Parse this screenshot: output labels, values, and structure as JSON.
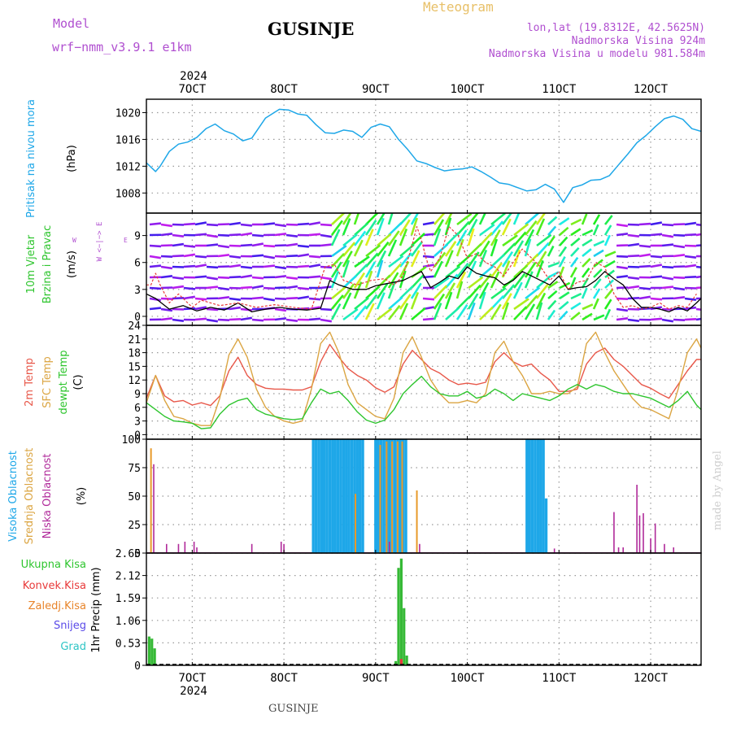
{
  "header": {
    "model_label": "Model",
    "model_name": "wrf−nmm_v3.9.1  e1km",
    "station": "GUSINJE",
    "meteogram": "Meteogram",
    "lonlat": "lon,lat (19.8312E, 42.5625N)",
    "altitude": "Nadmorska Visina 924m",
    "model_altitude": "Nadmorska Visina u modelu 981.584m",
    "watermark": "made by Angel",
    "footer_station": "GUSINJE"
  },
  "time_axis": {
    "year": "2024",
    "day_labels": [
      "7OCT",
      "8OCT",
      "9OCT",
      "10OCT",
      "11OCT",
      "12OCT"
    ],
    "day_positions": [
      7,
      8,
      9,
      10,
      11,
      12
    ],
    "range_days": [
      6.5,
      12.55
    ]
  },
  "colors": {
    "pressure": "#1ea7e8",
    "t2m": "#e8584a",
    "sfc": "#dba542",
    "dew": "#2ec52e",
    "high_cloud": "#1ea7e8",
    "mid_cloud": "#e89a2a",
    "low_cloud": "#b02a9a",
    "total_precip": "#35b935",
    "conv_precip": "#e83a3a",
    "frozen_precip": "#e8842a",
    "snow": "#5a4ae8",
    "graupel": "#2ec5c5",
    "wind_line": "#000000",
    "gust_line": "#e83a3a"
  },
  "panel_labels": {
    "pressure": [
      "Pritisak na nivou mora",
      "(hPa)"
    ],
    "wind": [
      "10m Vjetar",
      "Brzina i Pravac",
      "(m/s)"
    ],
    "compass": {
      "n": "N",
      "s": "S",
      "w": "W",
      "e": "E",
      "text": "W <−|−> E"
    },
    "temp": [
      "2m Temp",
      "SFC Temp",
      "dewpt Temp",
      "(C)"
    ],
    "cloud": [
      "Visoka Oblacnost",
      "Srednja Oblacnost",
      "Niska Oblacnost",
      "(%)"
    ],
    "precip_legend": [
      "Ukupna Kisa",
      "Konvek.Kisa",
      "Zaledj.Kisa",
      "Snijeg",
      "Grad"
    ],
    "precip_axis": "1hr Precip (mm)"
  },
  "chart_data": [
    {
      "type": "line",
      "panel": "pressure",
      "ylabel": "(hPa)",
      "yticks": [
        1008,
        1012,
        1016,
        1020
      ],
      "ylim": [
        1005,
        1022
      ],
      "x": [
        6.5,
        6.6,
        6.65,
        6.75,
        6.85,
        6.95,
        7.05,
        7.15,
        7.25,
        7.35,
        7.45,
        7.55,
        7.65,
        7.8,
        7.95,
        8.05,
        8.15,
        8.25,
        8.35,
        8.45,
        8.55,
        8.65,
        8.75,
        8.85,
        8.95,
        9.05,
        9.15,
        9.25,
        9.35,
        9.45,
        9.55,
        9.65,
        9.75,
        9.85,
        9.95,
        10.05,
        10.15,
        10.25,
        10.35,
        10.45,
        10.55,
        10.65,
        10.75,
        10.85,
        10.95,
        11.05,
        11.15,
        11.25,
        11.35,
        11.45,
        11.55,
        11.65,
        11.75,
        11.85,
        11.95,
        12.05,
        12.15,
        12.25,
        12.35,
        12.45,
        12.55
      ],
      "values": [
        1012.5,
        1011.2,
        1012.0,
        1014.2,
        1015.3,
        1015.6,
        1016.3,
        1017.6,
        1018.3,
        1017.3,
        1016.8,
        1015.8,
        1016.2,
        1019.2,
        1020.5,
        1020.4,
        1019.8,
        1019.6,
        1018.2,
        1017.0,
        1016.9,
        1017.4,
        1017.2,
        1016.3,
        1017.8,
        1018.3,
        1017.9,
        1016.0,
        1014.5,
        1012.8,
        1012.4,
        1011.8,
        1011.3,
        1011.5,
        1011.6,
        1011.9,
        1011.2,
        1010.4,
        1009.5,
        1009.3,
        1008.8,
        1008.3,
        1008.5,
        1009.3,
        1008.6,
        1006.6,
        1008.8,
        1009.2,
        1009.9,
        1010.0,
        1010.6,
        1012.2,
        1013.8,
        1015.5,
        1016.6,
        1017.9,
        1019.1,
        1019.5,
        1019.0,
        1017.6,
        1017.2
      ]
    },
    {
      "type": "line",
      "panel": "wind",
      "ylabel": "(m/s)",
      "yticks": [
        0,
        3,
        6,
        9
      ],
      "ylim": [
        -1,
        11.5
      ],
      "series": [
        {
          "x": [
            6.5,
            6.6,
            6.75,
            6.9,
            7.05,
            7.2,
            7.35,
            7.5,
            7.65,
            7.8,
            7.95,
            8.1,
            8.25,
            8.4,
            8.5,
            8.6,
            8.75,
            8.9,
            9.0,
            9.1,
            9.2,
            9.3,
            9.4,
            9.5,
            9.6,
            9.7,
            9.8,
            9.9,
            10.0,
            10.1,
            10.2,
            10.3,
            10.4,
            10.5,
            10.6,
            10.7,
            10.8,
            10.9,
            11.0,
            11.1,
            11.2,
            11.3,
            11.4,
            11.5,
            11.6,
            11.7,
            11.8,
            11.9,
            12.0,
            12.1,
            12.2,
            12.3,
            12.4,
            12.5,
            12.55
          ],
          "values": [
            2.5,
            2.0,
            0.8,
            1.2,
            0.6,
            1.0,
            0.7,
            1.5,
            0.5,
            0.8,
            1.0,
            0.8,
            0.7,
            0.9,
            4.0,
            3.5,
            3.0,
            3.0,
            3.4,
            3.6,
            3.8,
            4.0,
            4.5,
            5.0,
            3.2,
            3.8,
            4.5,
            4.2,
            5.5,
            4.8,
            4.5,
            4.3,
            3.5,
            4.0,
            5.0,
            4.5,
            4.0,
            3.5,
            4.5,
            3.0,
            3.2,
            3.3,
            4.0,
            5.0,
            4.2,
            3.5,
            2.0,
            1.0,
            1.0,
            0.8,
            0.5,
            1.0,
            0.6,
            1.5,
            2.0
          ]
        },
        {
          "x": [
            6.5,
            6.55,
            6.6,
            6.65,
            6.75,
            6.85,
            7.0,
            7.1,
            7.3,
            7.5,
            7.7,
            7.9,
            8.1,
            8.3,
            8.45,
            8.55,
            8.65,
            8.8,
            8.95,
            9.1,
            9.2,
            9.3,
            9.4,
            9.45,
            9.5,
            9.55,
            9.6,
            9.7,
            9.8,
            9.9,
            10.0,
            10.1,
            10.2,
            10.3,
            10.4,
            10.5,
            10.6,
            10.7,
            10.8,
            10.9,
            11.0,
            11.1,
            11.2,
            11.3,
            11.4,
            11.5,
            11.6,
            11.7,
            11.8,
            11.9,
            12.0,
            12.1,
            12.2,
            12.3,
            12.4,
            12.5
          ],
          "values": [
            3.5,
            3.5,
            4.8,
            3.5,
            1.5,
            2.5,
            1.0,
            1.8,
            1.2,
            1.5,
            1.0,
            1.3,
            1.0,
            0.8,
            5.5,
            5.8,
            4.0,
            3.5,
            4.0,
            4.2,
            3.5,
            4.5,
            8.0,
            10.0,
            8.5,
            6.5,
            5.0,
            6.5,
            10.0,
            9.0,
            6.5,
            7.0,
            6.0,
            5.5,
            4.5,
            6.0,
            7.5,
            6.5,
            5.5,
            4.0,
            5.0,
            3.0,
            3.8,
            4.0,
            6.0,
            5.5,
            2.5,
            1.0,
            1.2,
            0.8,
            1.0,
            1.5,
            0.8,
            1.2,
            1.0,
            2.5
          ]
        }
      ]
    },
    {
      "type": "line",
      "panel": "temperature",
      "ylabel": "(C)",
      "yticks": [
        0,
        3,
        6,
        9,
        12,
        15,
        18,
        21,
        24
      ],
      "ylim": [
        -1,
        24
      ],
      "series": [
        {
          "name": "2m Temp",
          "x": [
            6.5,
            6.6,
            6.7,
            6.8,
            6.9,
            7.0,
            7.1,
            7.2,
            7.3,
            7.4,
            7.5,
            7.6,
            7.7,
            7.8,
            7.9,
            8.0,
            8.1,
            8.2,
            8.3,
            8.4,
            8.5,
            8.6,
            8.7,
            8.8,
            8.9,
            9.0,
            9.1,
            9.2,
            9.3,
            9.4,
            9.5,
            9.6,
            9.7,
            9.8,
            9.9,
            10.0,
            10.1,
            10.2,
            10.3,
            10.4,
            10.5,
            10.6,
            10.7,
            10.8,
            10.9,
            11.0,
            11.1,
            11.2,
            11.3,
            11.4,
            11.5,
            11.6,
            11.7,
            11.8,
            11.9,
            12.0,
            12.1,
            12.2,
            12.3,
            12.4,
            12.5,
            12.55
          ],
          "values": [
            8.0,
            13.0,
            8.5,
            7.2,
            7.5,
            6.5,
            7.0,
            6.4,
            8.5,
            14.0,
            17.0,
            13.0,
            11.0,
            10.2,
            10.0,
            10.0,
            9.8,
            9.8,
            10.5,
            16.0,
            19.8,
            17.0,
            14.5,
            13.0,
            12.0,
            10.3,
            9.3,
            10.5,
            15.5,
            18.5,
            16.5,
            14.5,
            13.5,
            12.0,
            11.0,
            11.3,
            11.0,
            11.5,
            16.0,
            18.0,
            16.0,
            15.0,
            15.5,
            13.5,
            12.0,
            9.5,
            9.5,
            10.0,
            15.5,
            18.0,
            19.0,
            16.5,
            15.0,
            13.0,
            11.0,
            10.2,
            9.0,
            8.0,
            11.0,
            14.0,
            16.5,
            16.5
          ]
        },
        {
          "name": "SFC Temp",
          "x": [
            6.5,
            6.6,
            6.7,
            6.8,
            6.9,
            7.0,
            7.1,
            7.2,
            7.3,
            7.4,
            7.5,
            7.6,
            7.7,
            7.8,
            7.9,
            8.0,
            8.1,
            8.2,
            8.3,
            8.4,
            8.5,
            8.6,
            8.7,
            8.8,
            8.9,
            9.0,
            9.1,
            9.2,
            9.3,
            9.4,
            9.5,
            9.6,
            9.7,
            9.8,
            9.9,
            10.0,
            10.1,
            10.2,
            10.3,
            10.4,
            10.5,
            10.6,
            10.7,
            10.8,
            10.9,
            11.0,
            11.1,
            11.2,
            11.3,
            11.4,
            11.5,
            11.6,
            11.7,
            11.8,
            11.9,
            12.0,
            12.1,
            12.2,
            12.3,
            12.4,
            12.5,
            12.55
          ],
          "values": [
            7.0,
            13.0,
            7.5,
            4.0,
            3.5,
            2.5,
            2.0,
            2.0,
            8.0,
            17.5,
            21.0,
            17.0,
            10.0,
            6.0,
            4.0,
            3.0,
            2.5,
            3.0,
            10.0,
            20.0,
            22.5,
            18.0,
            11.0,
            7.0,
            5.5,
            4.0,
            3.5,
            8.0,
            18.0,
            21.5,
            17.0,
            12.0,
            9.0,
            7.0,
            7.0,
            7.5,
            7.0,
            9.0,
            18.0,
            20.5,
            16.0,
            13.0,
            9.0,
            9.0,
            9.5,
            9.0,
            9.0,
            10.5,
            20.0,
            22.5,
            18.0,
            14.0,
            11.0,
            8.0,
            6.0,
            5.5,
            4.5,
            3.5,
            10.0,
            18.0,
            21.0,
            19.0
          ]
        },
        {
          "name": "dewpt Temp",
          "x": [
            6.5,
            6.6,
            6.7,
            6.8,
            6.9,
            7.0,
            7.1,
            7.2,
            7.3,
            7.4,
            7.5,
            7.6,
            7.7,
            7.8,
            7.9,
            8.0,
            8.1,
            8.2,
            8.3,
            8.4,
            8.5,
            8.6,
            8.7,
            8.8,
            8.9,
            9.0,
            9.1,
            9.2,
            9.3,
            9.4,
            9.5,
            9.6,
            9.7,
            9.8,
            9.9,
            10.0,
            10.1,
            10.2,
            10.3,
            10.4,
            10.5,
            10.6,
            10.7,
            10.8,
            10.9,
            11.0,
            11.1,
            11.2,
            11.3,
            11.4,
            11.5,
            11.6,
            11.7,
            11.8,
            11.9,
            12.0,
            12.1,
            12.2,
            12.3,
            12.4,
            12.5,
            12.55
          ],
          "values": [
            7.0,
            5.5,
            4.0,
            3.0,
            2.8,
            2.5,
            1.3,
            1.5,
            4.5,
            6.5,
            7.5,
            8.0,
            5.5,
            4.5,
            4.0,
            3.5,
            3.3,
            3.5,
            7.0,
            10.0,
            9.0,
            9.5,
            7.5,
            5.0,
            3.2,
            2.5,
            3.2,
            5.5,
            9.0,
            11.0,
            12.8,
            10.5,
            9.0,
            8.5,
            8.5,
            9.5,
            8.0,
            8.5,
            10.0,
            9.0,
            7.5,
            9.0,
            8.5,
            8.0,
            7.5,
            8.5,
            10.0,
            11.0,
            10.0,
            11.0,
            10.5,
            9.5,
            9.0,
            9.0,
            8.5,
            8.0,
            7.0,
            6.0,
            7.5,
            9.5,
            6.5,
            5.5
          ]
        }
      ]
    },
    {
      "type": "bar",
      "panel": "cloud",
      "ylabel": "(%)",
      "yticks": [
        0,
        25,
        50,
        75,
        100
      ],
      "ylim": [
        0,
        100
      ],
      "high_x": [
        8.32,
        8.35,
        8.38,
        8.41,
        8.44,
        8.47,
        8.5,
        8.53,
        8.56,
        8.59,
        8.62,
        8.65,
        8.68,
        8.71,
        8.74,
        8.77,
        8.8,
        8.83,
        8.86,
        9.0,
        9.03,
        9.06,
        9.09,
        9.12,
        9.15,
        9.18,
        9.21,
        9.24,
        9.27,
        9.3,
        9.33,
        10.65,
        10.68,
        10.71,
        10.74,
        10.77,
        10.8,
        10.83,
        10.86
      ],
      "high_values": [
        100,
        100,
        100,
        100,
        100,
        100,
        100,
        100,
        100,
        100,
        100,
        100,
        100,
        100,
        100,
        100,
        100,
        100,
        100,
        100,
        100,
        100,
        100,
        100,
        100,
        100,
        100,
        100,
        100,
        100,
        100,
        100,
        100,
        100,
        100,
        100,
        100,
        100,
        48
      ],
      "mid_x": [
        6.55,
        8.78,
        9.05,
        9.12,
        9.18,
        9.24,
        9.29,
        9.45
      ],
      "mid_values": [
        92,
        52,
        95,
        98,
        98,
        98,
        98,
        55
      ],
      "low_x": [
        6.58,
        6.72,
        6.85,
        6.92,
        7.02,
        7.05,
        7.65,
        7.97,
        8.0,
        9.15,
        9.48,
        10.95,
        11.6,
        11.65,
        11.7,
        11.85,
        11.88,
        11.92,
        12.0,
        12.05,
        12.15,
        12.25
      ],
      "low_values": [
        78,
        8,
        8,
        10,
        10,
        5,
        8,
        10,
        8,
        10,
        8,
        4,
        36,
        5,
        5,
        60,
        33,
        35,
        13,
        26,
        8,
        5
      ]
    },
    {
      "type": "bar",
      "panel": "precipitation",
      "ylabel": "1hr Precip (mm)",
      "yticks": [
        0,
        0.53,
        1.06,
        1.59,
        2.12,
        2.65
      ],
      "ylim": [
        0,
        2.65
      ],
      "total_x": [
        6.53,
        6.56,
        6.59,
        9.22,
        9.25,
        9.28,
        9.31,
        9.34
      ],
      "total_values": [
        0.68,
        0.63,
        0.4,
        0.1,
        2.3,
        2.52,
        1.35,
        0.23
      ],
      "conv_x": [
        9.28
      ],
      "conv_values": [
        0.15
      ]
    }
  ]
}
